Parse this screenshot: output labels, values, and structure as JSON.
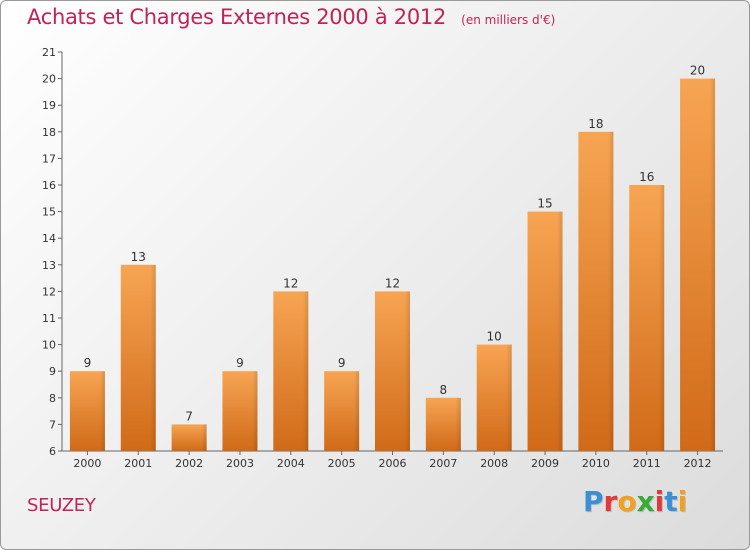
{
  "header": {
    "title": "Achats et Charges Externes 2000 à 2012",
    "subtitle": "(en milliers d'€)"
  },
  "footer": {
    "place": "SEUZEY",
    "logo": "Proxiti",
    "logo_colors": [
      "#3a8fd6",
      "#e03a3a",
      "#f2a020",
      "#3aaa3a",
      "#e03a3a",
      "#3a8fd6",
      "#f2a020"
    ]
  },
  "chart_data": {
    "type": "bar",
    "categories": [
      "2000",
      "2001",
      "2002",
      "2003",
      "2004",
      "2005",
      "2006",
      "2007",
      "2008",
      "2009",
      "2010",
      "2011",
      "2012"
    ],
    "values": [
      9,
      13,
      7,
      9,
      12,
      9,
      12,
      8,
      10,
      15,
      18,
      16,
      20
    ],
    "title": "Achats et Charges Externes 2000 à 2012",
    "subtitle": "(en milliers d'€)",
    "xlabel": "",
    "ylabel": "",
    "ylim": [
      6,
      21
    ],
    "yticks": [
      6,
      7,
      8,
      9,
      10,
      11,
      12,
      13,
      14,
      15,
      16,
      17,
      18,
      19,
      20,
      21
    ],
    "grid": false,
    "legend": "none",
    "bar_color_light": "#f7a553",
    "bar_color_dark": "#d06a18",
    "data_labels": true
  }
}
